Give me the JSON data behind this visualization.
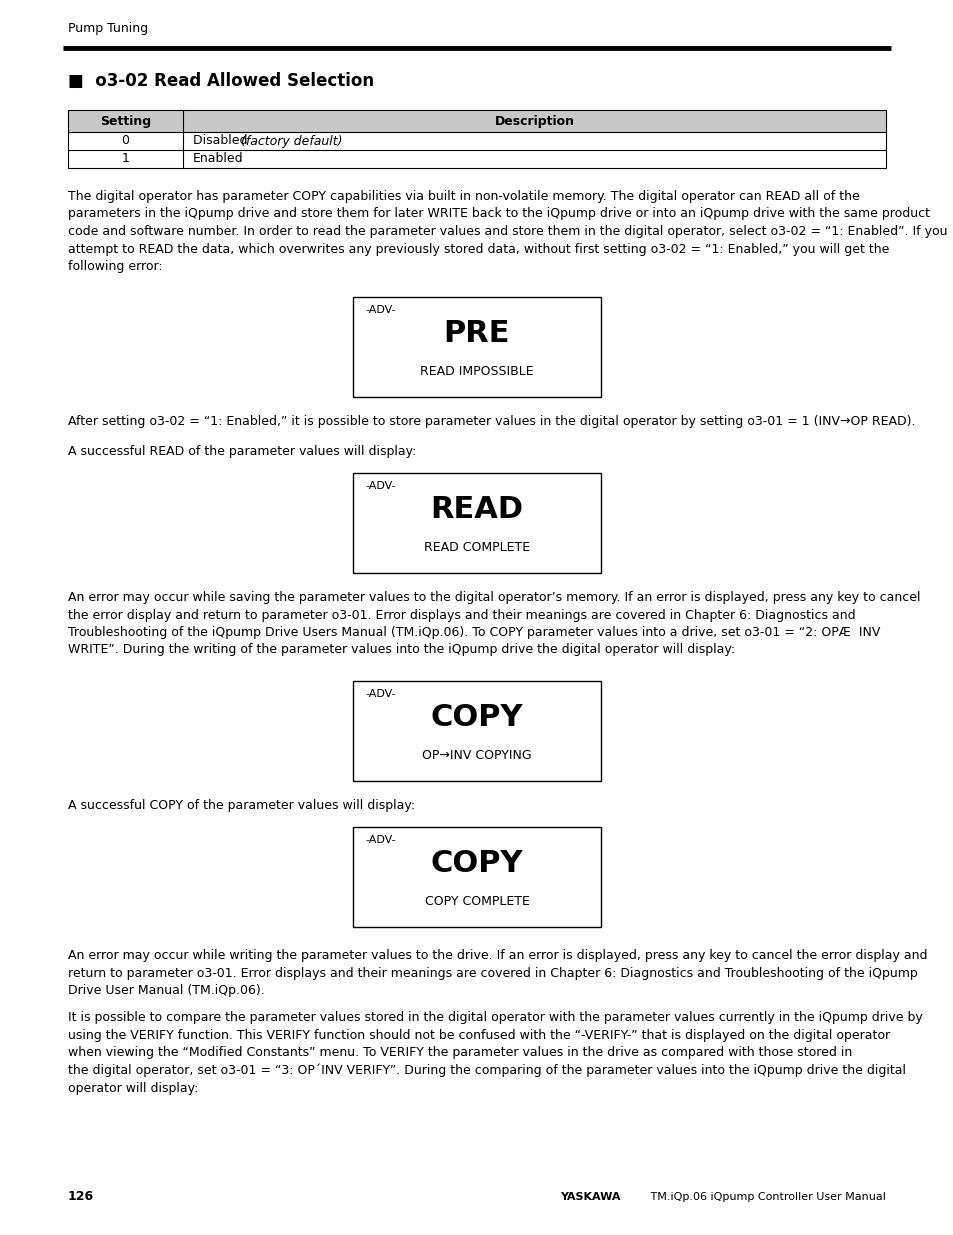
{
  "page_bg": "#ffffff",
  "header_text": "Pump Tuning",
  "header_line_color": "#000000",
  "section_title_bullet": "■",
  "section_title_text": "o3-02 Read Allowed Selection",
  "table_header": [
    "Setting",
    "Description"
  ],
  "table_rows": [
    [
      "0",
      "Disabled",
      "(factory default)"
    ],
    [
      "1",
      "Enabled",
      ""
    ]
  ],
  "table_header_bg": "#c8c8c8",
  "table_border_color": "#000000",
  "body_text_1": "The digital operator has parameter COPY capabilities via built in non-volatile memory. The digital operator can READ all of the\nparameters in the iQpump drive and store them for later WRITE back to the iQpump drive or into an iQpump drive with the same product\ncode and software number. In order to read the parameter values and store them in the digital operator, select o3-02 = “1: Enabled”. If you\nattempt to READ the data, which overwrites any previously stored data, without first setting o3-02 = “1: Enabled,” you will get the\nfollowing error:",
  "box1_adv": "-ADV-",
  "box1_main": "PRE",
  "box1_sub": "READ IMPOSSIBLE",
  "body_text_2": "After setting o3-02 = “1: Enabled,” it is possible to store parameter values in the digital operator by setting o3-01 = 1 (INV→OP READ).",
  "body_text_3": "A successful READ of the parameter values will display:",
  "box2_adv": "-ADV-",
  "box2_main": "READ",
  "box2_sub": "READ COMPLETE",
  "body_text_4": "An error may occur while saving the parameter values to the digital operator’s memory. If an error is displayed, press any key to cancel\nthe error display and return to parameter o3-01. Error displays and their meanings are covered in Chapter 6: Diagnostics and\nTroubleshooting of the iQpump Drive Users Manual (TM.iQp.06). To COPY parameter values into a drive, set o3-01 = “2: OPÆ  INV\nWRITE”. During the writing of the parameter values into the iQpump drive the digital operator will display:",
  "box3_adv": "-ADV-",
  "box3_main": "COPY",
  "box3_sub": "OP→INV COPYING",
  "body_text_5": "A successful COPY of the parameter values will display:",
  "box4_adv": "-ADV-",
  "box4_main": "COPY",
  "box4_sub": "COPY COMPLETE",
  "body_text_6": "An error may occur while writing the parameter values to the drive. If an error is displayed, press any key to cancel the error display and\nreturn to parameter o3-01. Error displays and their meanings are covered in Chapter 6: Diagnostics and Troubleshooting of the iQpump\nDrive User Manual (TM.iQp.06).",
  "body_text_7": "It is possible to compare the parameter values stored in the digital operator with the parameter values currently in the iQpump drive by\nusing the VERIFY function. This VERIFY function should not be confused with the “-VERIFY-” that is displayed on the digital operator\nwhen viewing the “Modified Constants” menu. To VERIFY the parameter values in the drive as compared with those stored in\nthe digital operator, set o3-01 = “3: OP´INV VERIFY”. During the comparing of the parameter values into the iQpump drive the digital\noperator will display:",
  "footer_page": "126",
  "footer_yaskawa": "YASKAWA",
  "footer_rest": " TM.iQp.06 iQpump Controller User Manual"
}
